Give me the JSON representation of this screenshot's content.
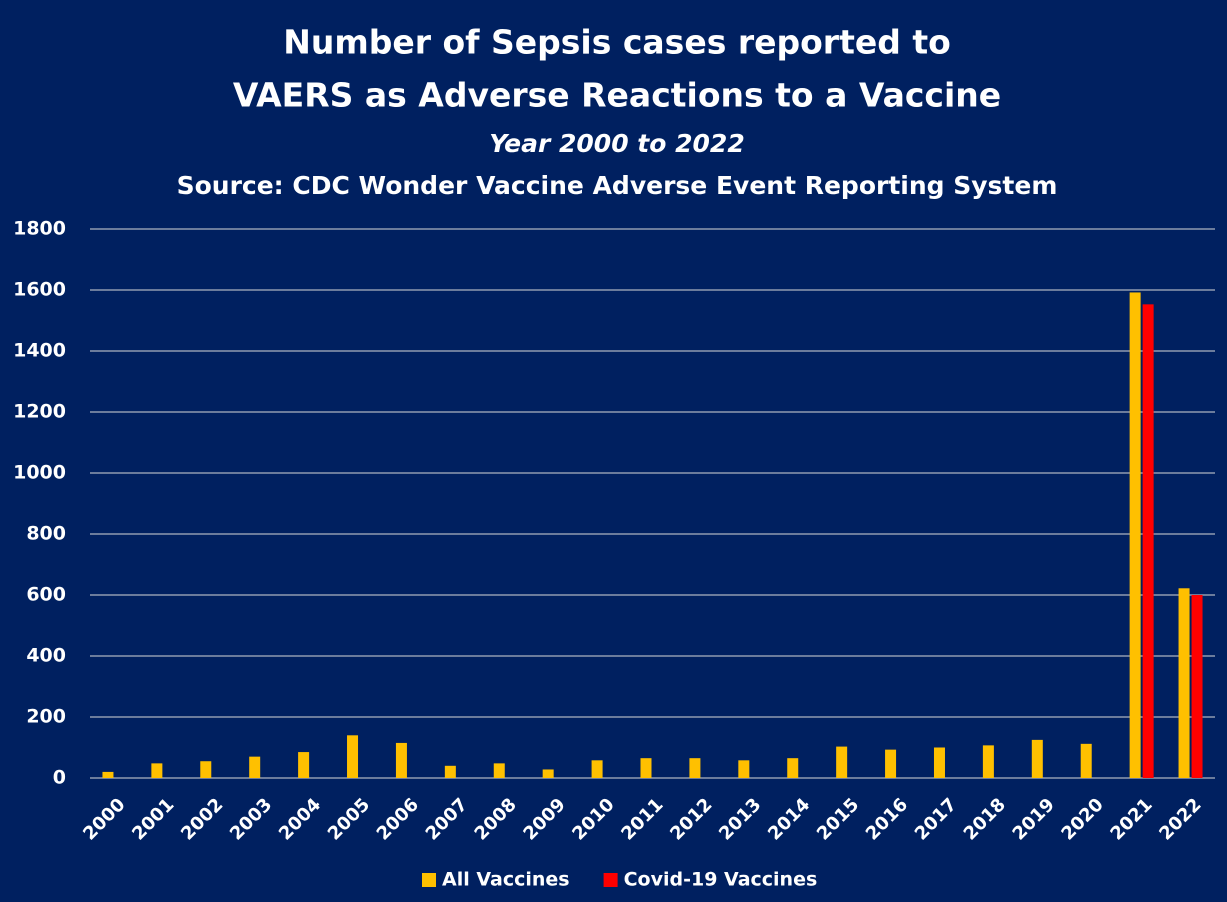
{
  "chart_data": {
    "type": "bar",
    "title": [
      "Number of Sepsis cases reported to",
      "VAERS as Adverse Reactions to a Vaccine"
    ],
    "subtitle": "Year 2000 to 2022",
    "source": "Source: CDC Wonder Vaccine Adverse Event Reporting System",
    "categories": [
      "2000",
      "2001",
      "2002",
      "2003",
      "2004",
      "2005",
      "2006",
      "2007",
      "2008",
      "2009",
      "2010",
      "2011",
      "2012",
      "2013",
      "2014",
      "2015",
      "2016",
      "2017",
      "2018",
      "2019",
      "2020",
      "2021",
      "2022"
    ],
    "series": [
      {
        "name": "All Vaccines",
        "color": "#ffc000",
        "values": [
          20,
          48,
          55,
          70,
          85,
          140,
          115,
          40,
          48,
          28,
          58,
          65,
          65,
          58,
          65,
          103,
          93,
          100,
          107,
          125,
          112,
          1592,
          622
        ]
      },
      {
        "name": "Covid-19 Vaccines",
        "color": "#ff0000",
        "values": [
          null,
          null,
          null,
          null,
          null,
          null,
          null,
          null,
          null,
          null,
          null,
          null,
          null,
          null,
          null,
          null,
          null,
          null,
          null,
          null,
          null,
          1553,
          600
        ]
      }
    ],
    "ylim": [
      0,
      1800
    ],
    "yticks": [
      0,
      200,
      400,
      600,
      800,
      1000,
      1200,
      1400,
      1600,
      1800
    ],
    "grid": true,
    "legend": "bottom"
  }
}
